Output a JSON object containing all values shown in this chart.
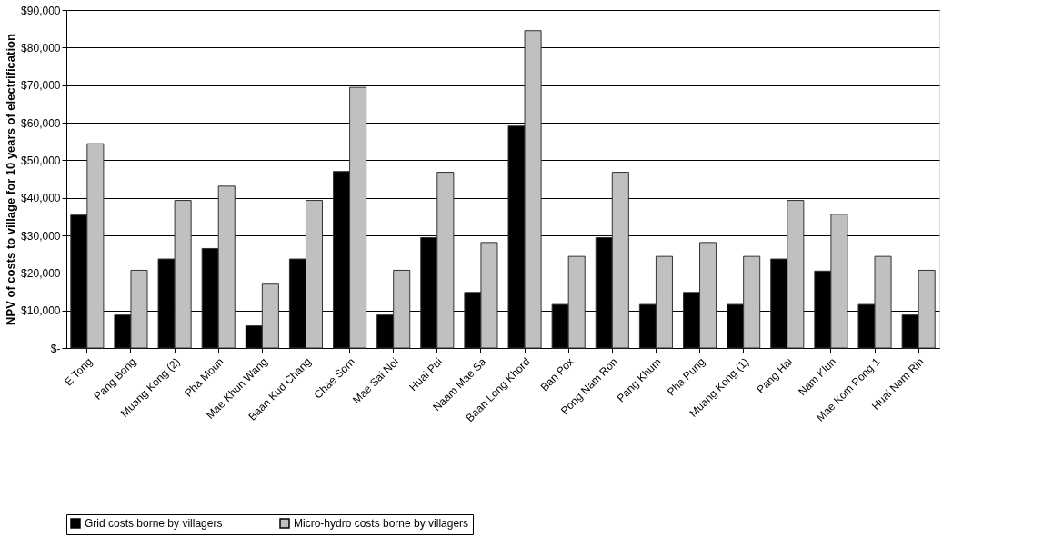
{
  "chart_data": {
    "type": "bar",
    "ylabel": "NPV of costs to village for 10 years of electrification",
    "categories": [
      "E Tong",
      "Pang Bong",
      "Muang Kong (2)",
      "Pha Moun",
      "Mae Khun Wang",
      "Baan Kud Chang",
      "Chae Sorn",
      "Mae Sai Noi",
      "Huai Pui",
      "Naam Mae Sa",
      "Baan Long Khord",
      "Ban Pox",
      "Pong Nam Ron",
      "Pang Khum",
      "Pha Pung",
      "Muang Kong (1)",
      "Pang Hai",
      "Nam Klun",
      "Mae Kom Pong 1",
      "Huai Nam Rin"
    ],
    "series": [
      {
        "name": "Grid costs borne by villagers",
        "color": "#000000",
        "values": [
          35400,
          8800,
          23700,
          26500,
          5900,
          23700,
          47000,
          8800,
          29400,
          14800,
          59100,
          11600,
          29400,
          11600,
          14800,
          11600,
          23700,
          20500,
          11600,
          8800
        ]
      },
      {
        "name": "Micro-hydro costs borne by villagers",
        "color": "#c0c0c0",
        "values": [
          54400,
          20700,
          39300,
          43100,
          17000,
          39300,
          69400,
          20700,
          46800,
          28100,
          84500,
          24400,
          46800,
          24400,
          28100,
          24400,
          39300,
          35600,
          24400,
          20700
        ]
      }
    ],
    "ylim": [
      0,
      90000
    ],
    "yticks": [
      {
        "value": 0,
        "label": "$-"
      },
      {
        "value": 10000,
        "label": "$10,000"
      },
      {
        "value": 20000,
        "label": "$20,000"
      },
      {
        "value": 30000,
        "label": "$30,000"
      },
      {
        "value": 40000,
        "label": "$40,000"
      },
      {
        "value": 50000,
        "label": "$50,000"
      },
      {
        "value": 60000,
        "label": "$60,000"
      },
      {
        "value": 70000,
        "label": "$70,000"
      },
      {
        "value": 80000,
        "label": "$80,000"
      },
      {
        "value": 90000,
        "label": "$90,000"
      }
    ],
    "grid": "y",
    "legend": "bottom"
  }
}
